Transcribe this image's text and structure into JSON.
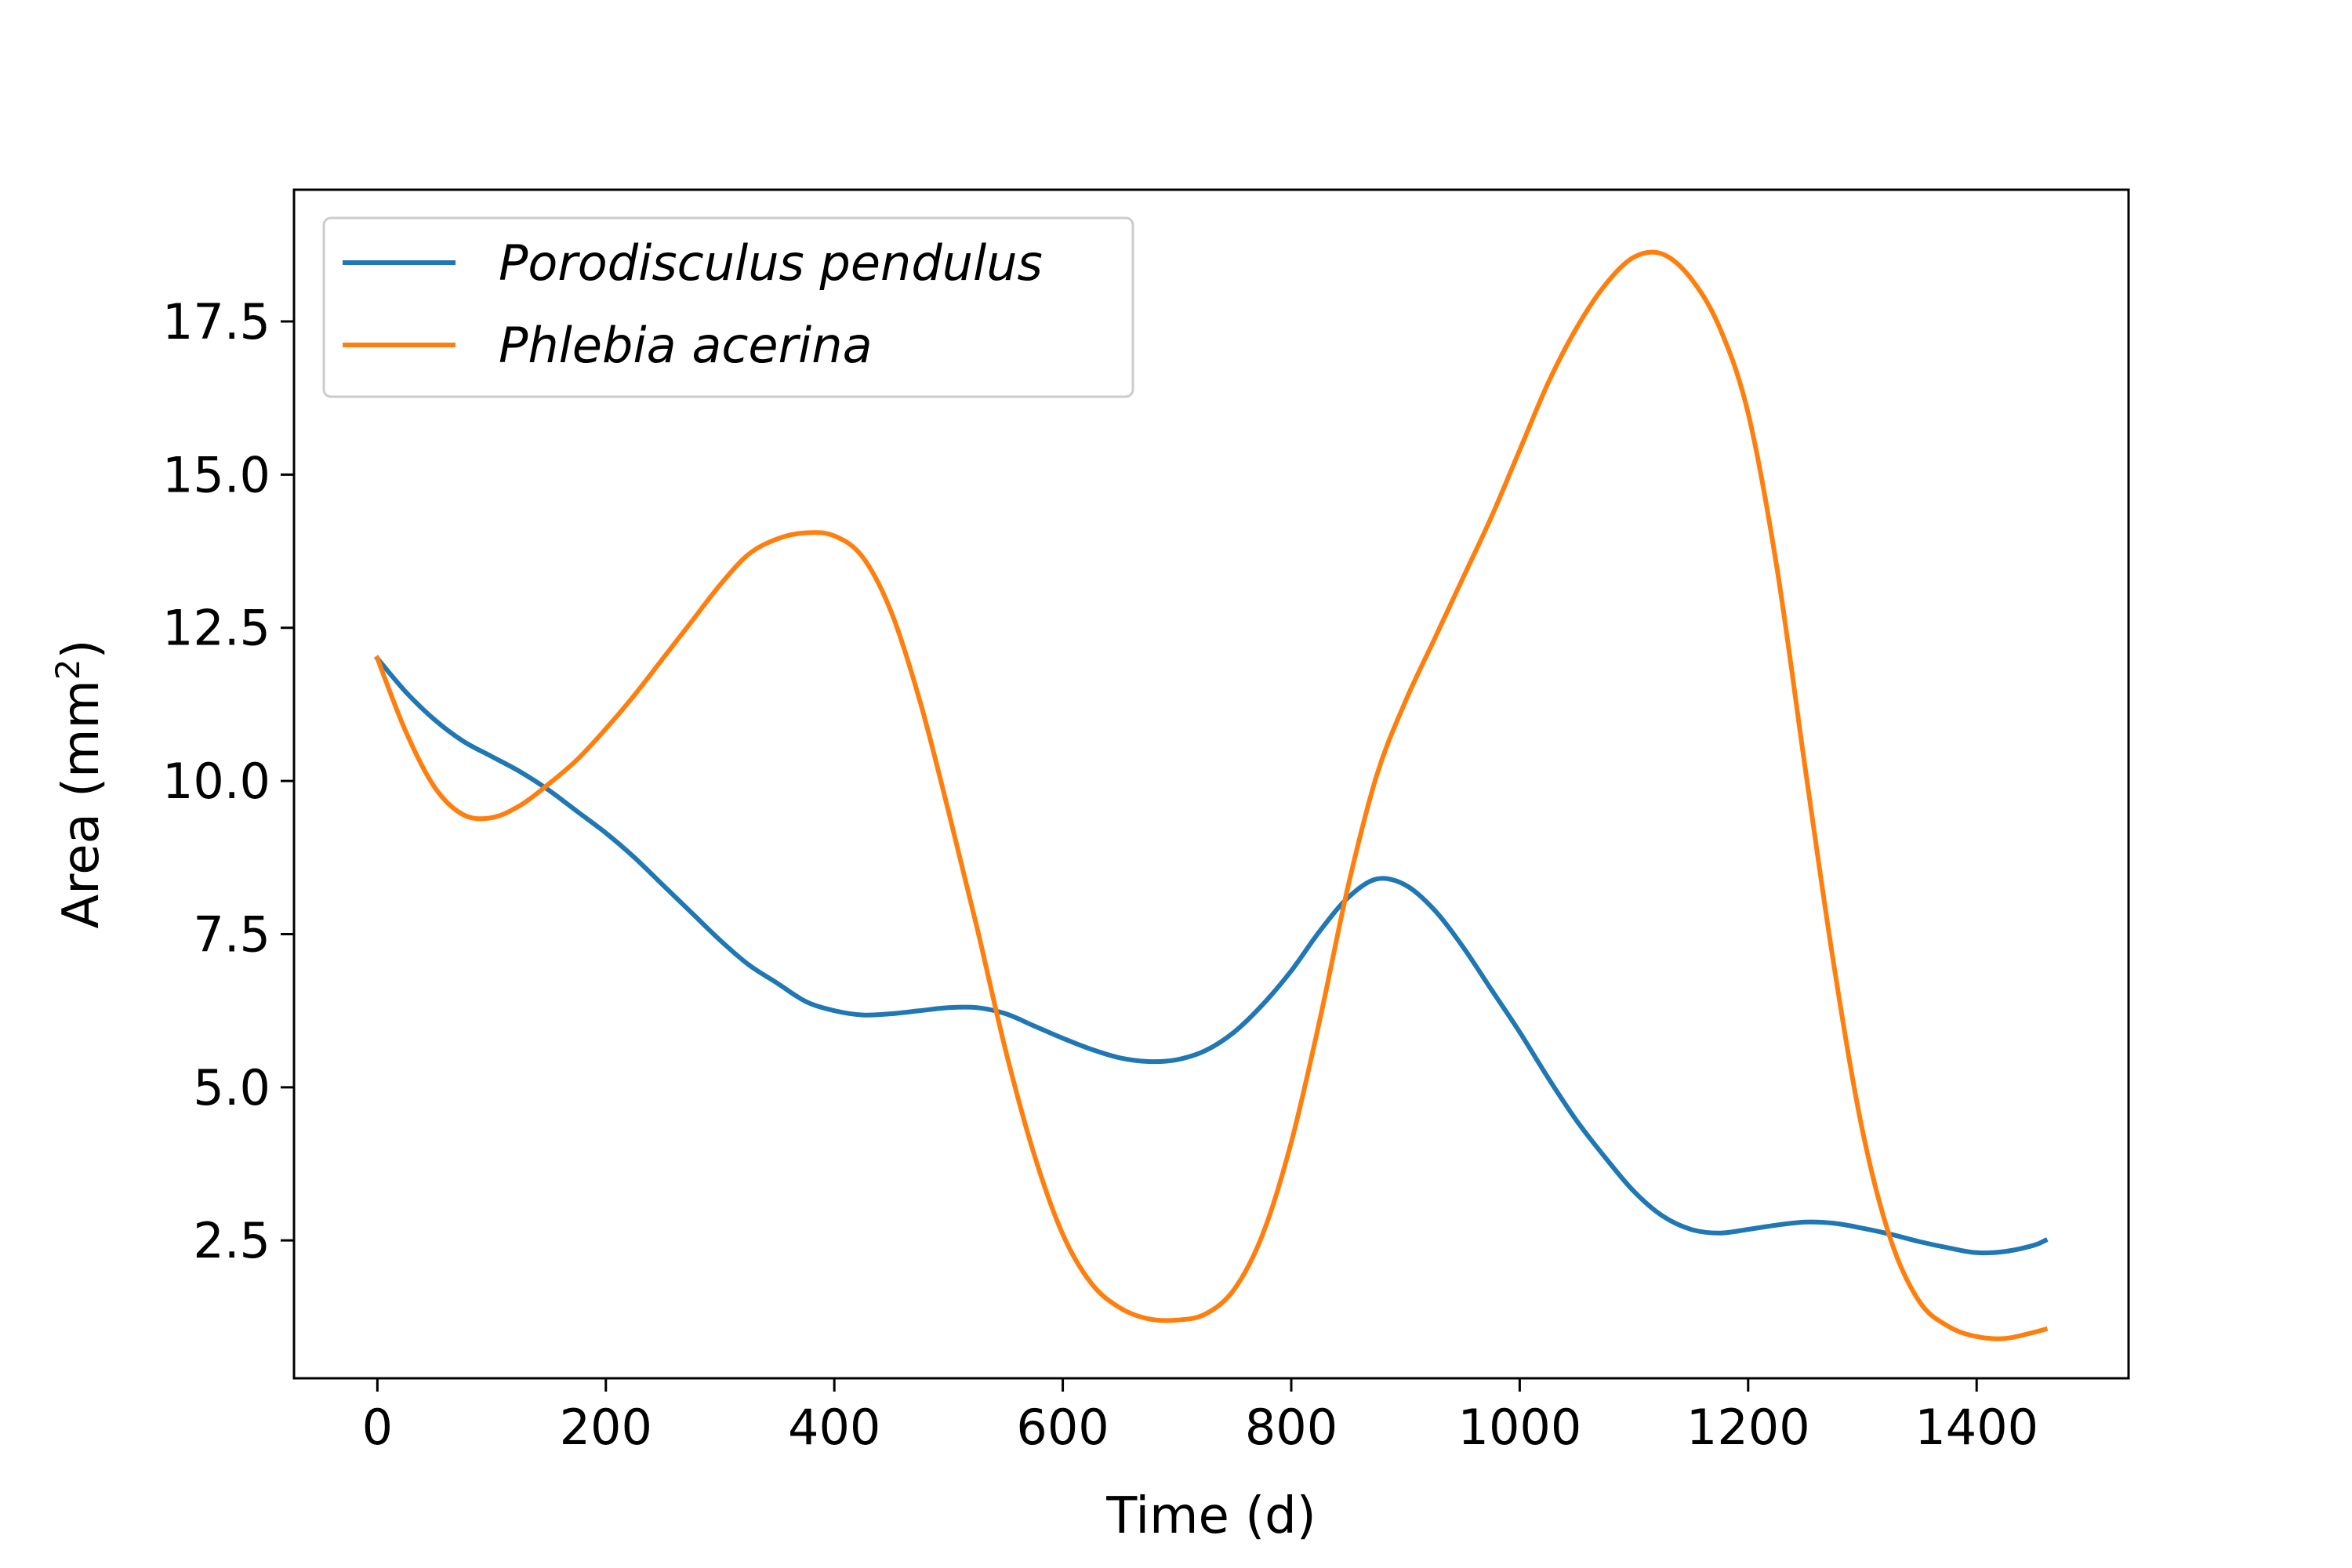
{
  "chart_data": {
    "type": "line",
    "xlabel": "Time (d)",
    "ylabel": {
      "prefix": "Area (mm",
      "superscript": "2",
      "suffix": ")"
    },
    "xlim": [
      -73,
      1533
    ],
    "ylim": [
      0.25,
      19.65
    ],
    "xticks": [
      0,
      200,
      400,
      600,
      800,
      1000,
      1200,
      1400
    ],
    "yticks": [
      2.5,
      5.0,
      7.5,
      10.0,
      12.5,
      15.0,
      17.5
    ],
    "xtick_labels": [
      "0",
      "200",
      "400",
      "600",
      "800",
      "1000",
      "1200",
      "1400"
    ],
    "ytick_labels": [
      "2.5",
      "5.0",
      "7.5",
      "10.0",
      "12.5",
      "15.0",
      "17.5"
    ],
    "grid": false,
    "legend_position": "top-left",
    "series": [
      {
        "name": "Porodisculus pendulus",
        "color": "#1f77b4",
        "x": [
          0,
          25,
          50,
          75,
          100,
          125,
          150,
          175,
          200,
          225,
          250,
          275,
          300,
          325,
          350,
          375,
          400,
          425,
          450,
          475,
          500,
          525,
          550,
          575,
          600,
          625,
          650,
          675,
          700,
          725,
          750,
          775,
          800,
          825,
          850,
          875,
          900,
          925,
          950,
          975,
          1000,
          1025,
          1050,
          1075,
          1100,
          1125,
          1150,
          1175,
          1200,
          1225,
          1250,
          1275,
          1300,
          1325,
          1350,
          1375,
          1400,
          1425,
          1450,
          1460
        ],
        "y": [
          12.0,
          11.45,
          11.0,
          10.65,
          10.4,
          10.15,
          9.85,
          9.5,
          9.15,
          8.75,
          8.3,
          7.85,
          7.4,
          7.0,
          6.7,
          6.4,
          6.25,
          6.18,
          6.2,
          6.25,
          6.3,
          6.3,
          6.2,
          6.0,
          5.8,
          5.62,
          5.48,
          5.42,
          5.45,
          5.6,
          5.9,
          6.35,
          6.9,
          7.55,
          8.1,
          8.4,
          8.3,
          7.9,
          7.3,
          6.6,
          5.9,
          5.15,
          4.45,
          3.85,
          3.3,
          2.9,
          2.68,
          2.62,
          2.68,
          2.75,
          2.8,
          2.78,
          2.7,
          2.6,
          2.48,
          2.38,
          2.3,
          2.32,
          2.42,
          2.5
        ]
      },
      {
        "name": "Phlebia acerina",
        "color": "#ff7f0e",
        "x": [
          0,
          25,
          50,
          75,
          100,
          125,
          150,
          175,
          200,
          225,
          250,
          275,
          300,
          325,
          350,
          375,
          400,
          425,
          450,
          475,
          500,
          525,
          550,
          575,
          600,
          625,
          650,
          675,
          700,
          725,
          750,
          775,
          800,
          825,
          850,
          875,
          900,
          925,
          950,
          975,
          1000,
          1025,
          1050,
          1075,
          1100,
          1125,
          1150,
          1175,
          1200,
          1225,
          1250,
          1275,
          1300,
          1325,
          1350,
          1375,
          1400,
          1425,
          1450,
          1460
        ],
        "y": [
          12.0,
          10.8,
          9.9,
          9.45,
          9.4,
          9.6,
          9.95,
          10.35,
          10.85,
          11.4,
          12.0,
          12.6,
          13.2,
          13.7,
          13.95,
          14.05,
          14.0,
          13.65,
          12.75,
          11.3,
          9.5,
          7.6,
          5.6,
          3.9,
          2.6,
          1.8,
          1.4,
          1.22,
          1.2,
          1.3,
          1.7,
          2.6,
          4.1,
          6.1,
          8.3,
          10.1,
          11.3,
          12.3,
          13.3,
          14.3,
          15.4,
          16.5,
          17.4,
          18.1,
          18.55,
          18.6,
          18.2,
          17.4,
          16.0,
          13.5,
          10.2,
          7.0,
          4.3,
          2.5,
          1.5,
          1.1,
          0.93,
          0.9,
          1.0,
          1.05
        ]
      }
    ]
  }
}
